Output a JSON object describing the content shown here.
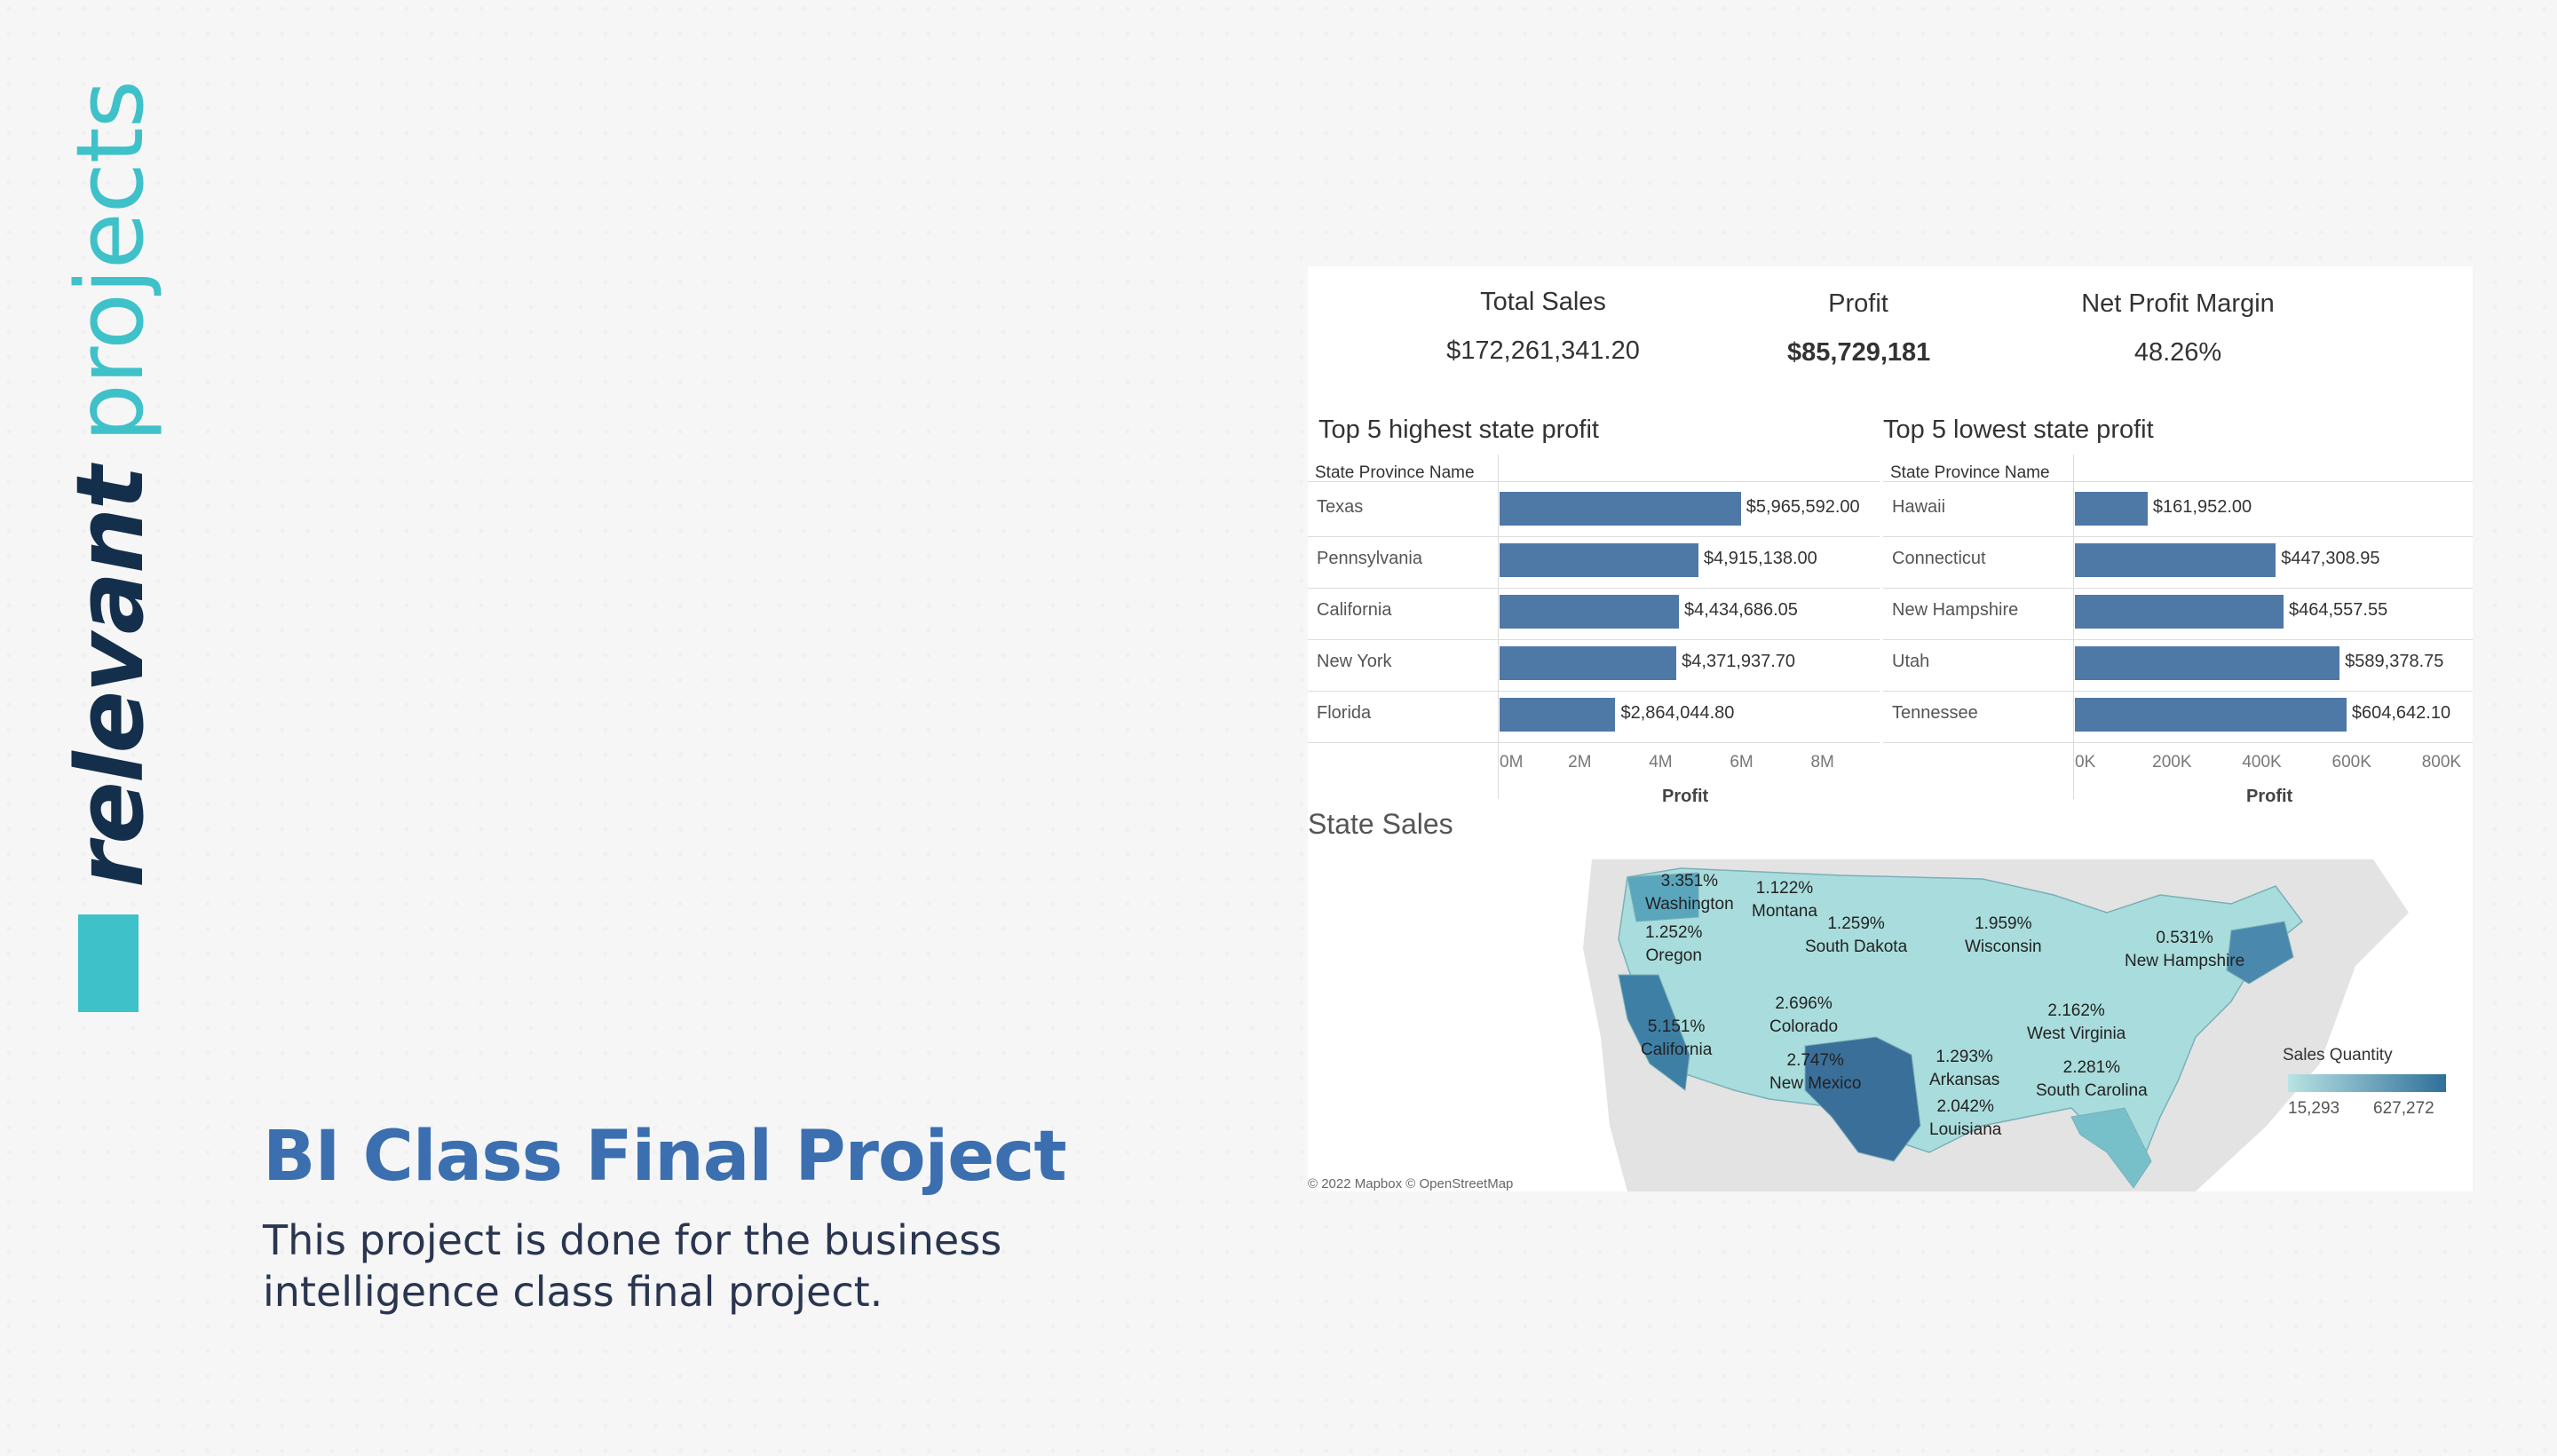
{
  "side": {
    "word1": "relevant",
    "word2": "projects"
  },
  "project": {
    "title": "BI Class Final Project",
    "description": "This project is done for the business intelligence class final project."
  },
  "dashboard": {
    "kpis": {
      "total_sales": {
        "label": "Total Sales",
        "value": "$172,261,341.20"
      },
      "profit": {
        "label": "Profit",
        "value": "$85,729,181"
      },
      "net_profit_margin": {
        "label": "Net Profit Margin",
        "value": "48.26%"
      }
    },
    "map": {
      "title": "State Sales",
      "attribution": "© 2022 Mapbox © OpenStreetMap",
      "legend_title": "Sales Quantity",
      "legend_min": "15,293",
      "legend_max": "627,272",
      "labels": [
        {
          "pct": "3.351%",
          "name": "Washington"
        },
        {
          "pct": "1.122%",
          "name": "Montana"
        },
        {
          "pct": "1.252%",
          "name": "Oregon"
        },
        {
          "pct": "1.259%",
          "name": "South Dakota"
        },
        {
          "pct": "1.959%",
          "name": "Wisconsin"
        },
        {
          "pct": "0.531%",
          "name": "New Hampshire"
        },
        {
          "pct": "2.696%",
          "name": "Colorado"
        },
        {
          "pct": "5.151%",
          "name": "California"
        },
        {
          "pct": "2.162%",
          "name": "West Virginia"
        },
        {
          "pct": "2.747%",
          "name": "New Mexico"
        },
        {
          "pct": "1.293%",
          "name": "Arkansas"
        },
        {
          "pct": "2.281%",
          "name": "South Carolina"
        },
        {
          "pct": "2.042%",
          "name": "Louisiana"
        }
      ]
    }
  },
  "chart_data": [
    {
      "type": "bar",
      "title": "Top 5 highest state profit",
      "column_header": "State Province Name",
      "categories": [
        "Texas",
        "Pennsylvania",
        "California",
        "New York",
        "Florida"
      ],
      "values": [
        5965592.0,
        4915138.0,
        4434686.05,
        4371937.7,
        2864044.8
      ],
      "value_labels": [
        "$5,965,592.00",
        "$4,915,138.00",
        "$4,434,686.05",
        "$4,371,937.70",
        "$2,864,044.80"
      ],
      "xlabel": "Profit",
      "xlim": [
        0,
        9000000
      ],
      "ticks": [
        "0M",
        "2M",
        "4M",
        "6M",
        "8M"
      ],
      "tick_values": [
        0,
        2000000,
        4000000,
        6000000,
        8000000
      ]
    },
    {
      "type": "bar",
      "title": "Top 5 lowest state profit",
      "column_header": "State Province Name",
      "categories": [
        "Hawaii",
        "Connecticut",
        "New Hampshire",
        "Utah",
        "Tennessee"
      ],
      "values": [
        161952.0,
        447308.95,
        464557.55,
        589378.75,
        604642.1
      ],
      "value_labels": [
        "$161,952.00",
        "$447,308.95",
        "$464,557.55",
        "$589,378.75",
        "$604,642.10"
      ],
      "xlabel": "Profit",
      "xlim": [
        0,
        850000
      ],
      "ticks": [
        "0K",
        "200K",
        "400K",
        "600K",
        "800K"
      ],
      "tick_values": [
        0,
        200000,
        400000,
        600000,
        800000
      ]
    }
  ]
}
